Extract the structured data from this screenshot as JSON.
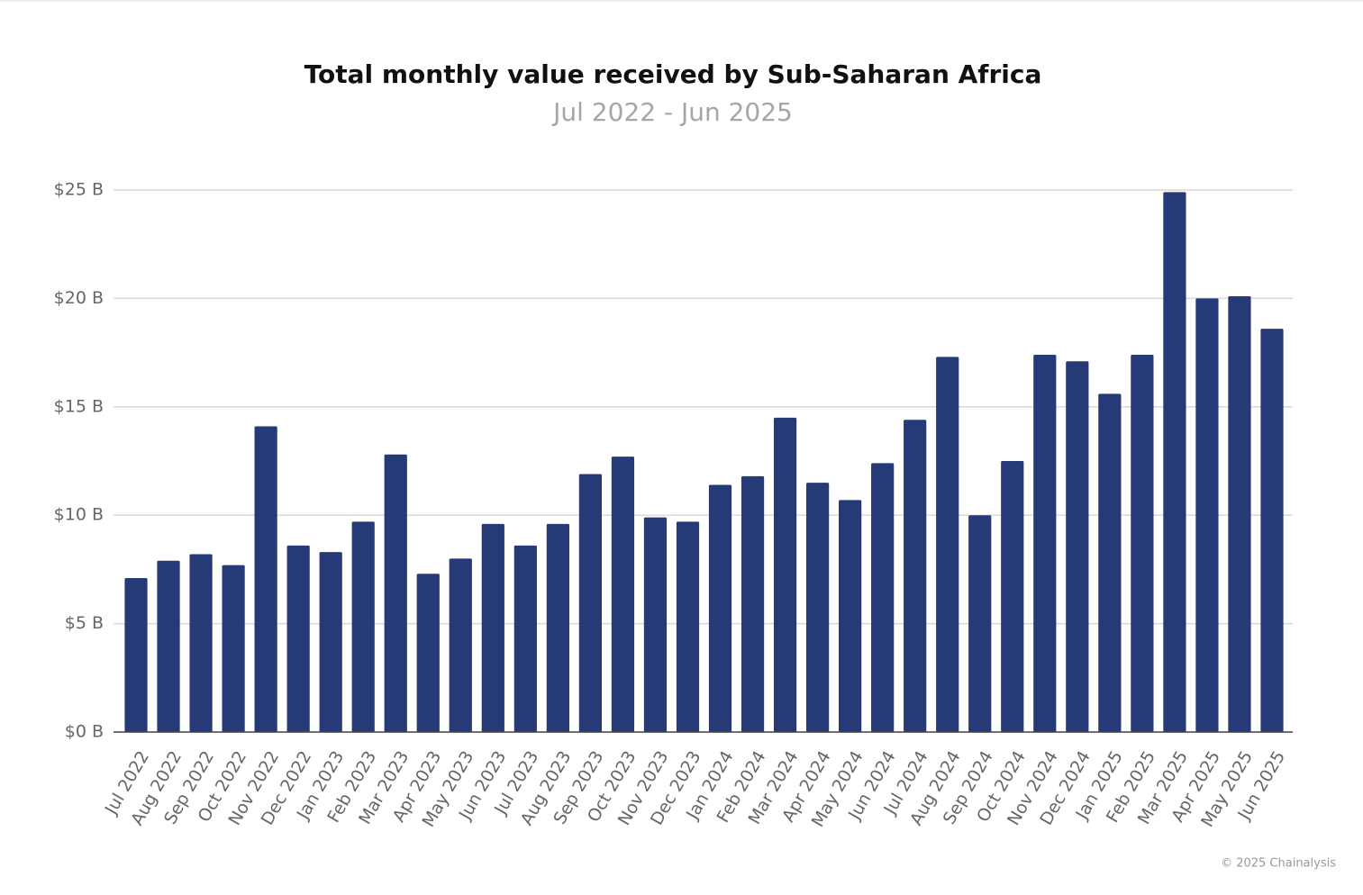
{
  "chart_data": {
    "type": "bar",
    "title": "Total monthly value received by Sub-Saharan Africa",
    "subtitle": "Jul 2022 - Jun 2025",
    "source": "© 2025 Chainalysis",
    "categories": [
      "Jul 2022",
      "Aug 2022",
      "Sep 2022",
      "Oct 2022",
      "Nov 2022",
      "Dec 2022",
      "Jan 2023",
      "Feb 2023",
      "Mar 2023",
      "Apr 2023",
      "May 2023",
      "Jun 2023",
      "Jul 2023",
      "Aug 2023",
      "Sep 2023",
      "Oct 2023",
      "Nov 2023",
      "Dec 2023",
      "Jan 2024",
      "Feb 2024",
      "Mar 2024",
      "Apr 2024",
      "May 2024",
      "Jun 2024",
      "Jul 2024",
      "Aug 2024",
      "Sep 2024",
      "Oct 2024",
      "Nov 2024",
      "Dec 2024",
      "Jan 2025",
      "Feb 2025",
      "Mar 2025",
      "Apr 2025",
      "May 2025",
      "Jun 2025"
    ],
    "values": [
      7.1,
      7.9,
      8.2,
      7.7,
      14.1,
      8.6,
      8.3,
      9.7,
      12.8,
      7.3,
      8.0,
      9.6,
      8.6,
      9.6,
      11.9,
      12.7,
      9.9,
      9.7,
      11.4,
      11.8,
      14.5,
      11.5,
      10.7,
      12.4,
      14.4,
      17.3,
      10.0,
      12.5,
      17.4,
      17.1,
      15.6,
      17.4,
      24.9,
      20.0,
      20.1,
      18.6
    ],
    "color": "#263a78",
    "ylim": [
      0,
      25
    ],
    "yticks": [
      {
        "value": 0,
        "label": "$0 B"
      },
      {
        "value": 5,
        "label": "$5 B"
      },
      {
        "value": 10,
        "label": "$10 B"
      },
      {
        "value": 15,
        "label": "$15 B"
      },
      {
        "value": 20,
        "label": "$20 B"
      },
      {
        "value": 25,
        "label": "$25 B"
      }
    ],
    "grid": true
  }
}
